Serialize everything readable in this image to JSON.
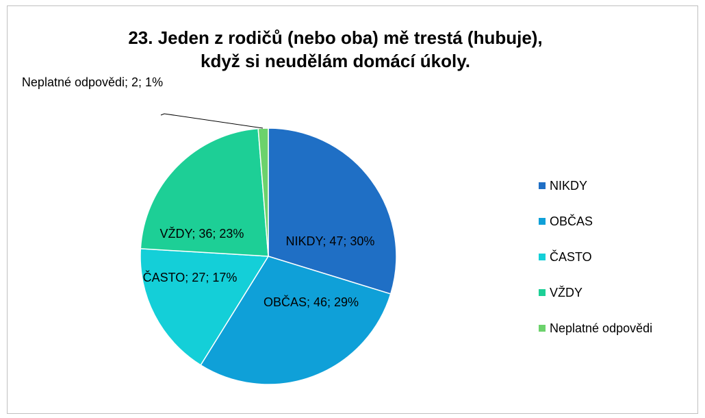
{
  "chart_data": {
    "type": "pie",
    "title": "23. Jeden z rodičů (nebo oba) mě trestá (hubuje), když si neudělám domácí úkoly.",
    "categories": [
      "NIKDY",
      "OBČAS",
      "ČASTO",
      "VŽDY",
      "Neplatné odpovědi"
    ],
    "values": [
      47,
      46,
      27,
      36,
      2
    ],
    "value_labels": [
      "NIKDY; 47; 30%",
      "OBČAS; 46; 29%",
      "ČASTO; 27; 17%",
      "VŽDY; 36; 23%",
      "Neplatné odpovědi; 2; 1%"
    ],
    "colors": [
      "#1f6fc5",
      "#0fa0d8",
      "#14cfd8",
      "#1dcf96",
      "#6cd26c"
    ],
    "legend": "right"
  }
}
